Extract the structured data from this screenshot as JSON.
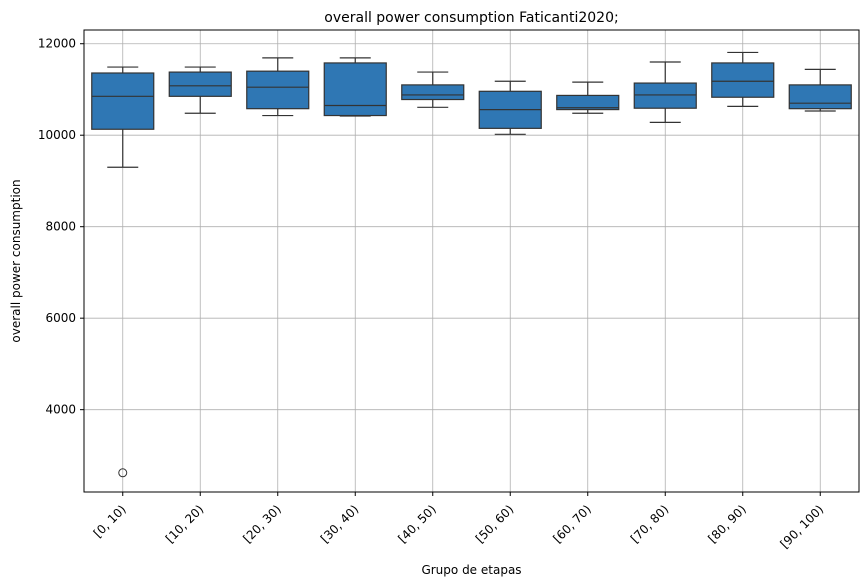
{
  "chart_data": {
    "type": "box",
    "title": "overall power consumption Faticanti2020;",
    "xlabel": "Grupo de etapas",
    "ylabel": "overall power consumption",
    "categories": [
      "[0, 10)",
      "[10, 20)",
      "[20, 30)",
      "[30, 40)",
      "[40, 50)",
      "[50, 60)",
      "[60, 70)",
      "[70, 80)",
      "[80, 90)",
      "[90, 100)"
    ],
    "boxes": [
      {
        "whisker_low": 9300,
        "q1": 10130,
        "median": 10850,
        "q3": 11360,
        "whisker_high": 11490,
        "outliers": [
          2620
        ]
      },
      {
        "whisker_low": 10480,
        "q1": 10850,
        "median": 11080,
        "q3": 11380,
        "whisker_high": 11490,
        "outliers": []
      },
      {
        "whisker_low": 10430,
        "q1": 10580,
        "median": 11050,
        "q3": 11400,
        "whisker_high": 11690,
        "outliers": []
      },
      {
        "whisker_low": 10420,
        "q1": 10430,
        "median": 10650,
        "q3": 11580,
        "whisker_high": 11690,
        "outliers": []
      },
      {
        "whisker_low": 10610,
        "q1": 10780,
        "median": 10880,
        "q3": 11100,
        "whisker_high": 11380,
        "outliers": []
      },
      {
        "whisker_low": 10020,
        "q1": 10150,
        "median": 10560,
        "q3": 10960,
        "whisker_high": 11180,
        "outliers": []
      },
      {
        "whisker_low": 10480,
        "q1": 10560,
        "median": 10600,
        "q3": 10870,
        "whisker_high": 11160,
        "outliers": []
      },
      {
        "whisker_low": 10280,
        "q1": 10590,
        "median": 10880,
        "q3": 11140,
        "whisker_high": 11600,
        "outliers": []
      },
      {
        "whisker_low": 10630,
        "q1": 10830,
        "median": 11180,
        "q3": 11580,
        "whisker_high": 11810,
        "outliers": []
      },
      {
        "whisker_low": 10530,
        "q1": 10580,
        "median": 10700,
        "q3": 11100,
        "whisker_high": 11440,
        "outliers": []
      }
    ],
    "yticks": [
      4000,
      6000,
      8000,
      10000,
      12000
    ],
    "ylim": [
      2200,
      12300
    ],
    "grid": true,
    "box_color": "#2f77b4",
    "edge_color": "#333333"
  }
}
